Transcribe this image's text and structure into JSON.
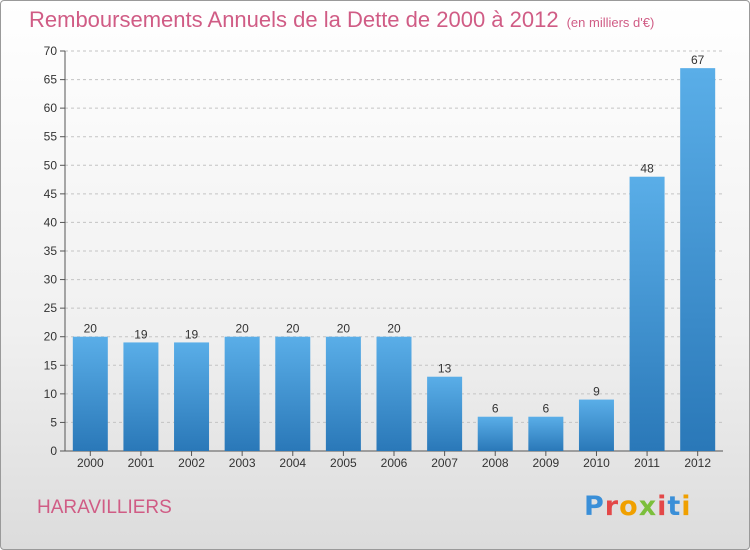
{
  "header": {
    "title": "Remboursements Annuels de la Dette de 2000 à 2012",
    "unit": "(en milliers d'€)"
  },
  "commune": "HARAVILLIERS",
  "logo": {
    "text": "Proxiti",
    "colors": [
      "#3a8fd8",
      "#e34848",
      "#f0a000",
      "#7cbf3c",
      "#e34848",
      "#3a8fd8",
      "#f0a000"
    ]
  },
  "chart_data": {
    "type": "bar",
    "title": "Remboursements Annuels de la Dette de 2000 à 2012",
    "xlabel": "",
    "ylabel": "",
    "categories": [
      "2000",
      "2001",
      "2002",
      "2003",
      "2004",
      "2005",
      "2006",
      "2007",
      "2008",
      "2009",
      "2010",
      "2011",
      "2012"
    ],
    "values": [
      20,
      19,
      19,
      20,
      20,
      20,
      20,
      13,
      6,
      6,
      9,
      48,
      67
    ],
    "ylim": [
      0,
      70
    ],
    "yticks": [
      0,
      5,
      10,
      15,
      20,
      25,
      30,
      35,
      40,
      45,
      50,
      55,
      60,
      65,
      70
    ],
    "grid": "horizontal-dashed",
    "bar_color_top": "#5aaee8",
    "bar_color_bottom": "#2a78b8"
  }
}
